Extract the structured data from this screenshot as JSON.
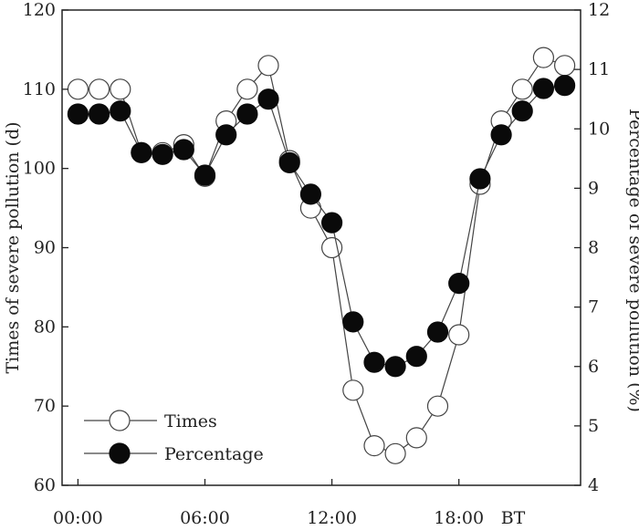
{
  "chart_data": {
    "type": "line",
    "title": "",
    "xlabel": "",
    "x_tick_labels": [
      "00:00",
      "06:00",
      "12:00",
      "18:00"
    ],
    "x_tick_positions": [
      0,
      6,
      12,
      18
    ],
    "x_unit_label": "BT",
    "xlim": [
      -0.75,
      23.75
    ],
    "ylabel_left": "Times of severe pollution (d)",
    "ylim_left": [
      60,
      120
    ],
    "yticks_left": [
      60,
      70,
      80,
      90,
      100,
      110,
      120
    ],
    "ylabel_right": "Percentage of severe pollution (%)",
    "ylim_right": [
      4,
      12
    ],
    "yticks_right": [
      4,
      5,
      6,
      7,
      8,
      9,
      10,
      11,
      12
    ],
    "grid": false,
    "legend_position": "bottom-left",
    "x": [
      0,
      1,
      2,
      3,
      4,
      5,
      6,
      7,
      8,
      9,
      10,
      11,
      12,
      13,
      14,
      15,
      16,
      17,
      18,
      19,
      20,
      21,
      22,
      23
    ],
    "series": [
      {
        "name": "Times",
        "axis": "left",
        "marker": "open-circle",
        "values": [
          110,
          110,
          110,
          102,
          102,
          103,
          99,
          106,
          110,
          113,
          101,
          95,
          90,
          72,
          65,
          64,
          66,
          70,
          79,
          98,
          106,
          110,
          114,
          113
        ]
      },
      {
        "name": "Percentage",
        "axis": "right",
        "marker": "filled-circle",
        "values": [
          10.25,
          10.25,
          10.3,
          9.6,
          9.57,
          9.65,
          9.22,
          9.9,
          10.25,
          10.5,
          9.43,
          8.9,
          8.42,
          6.75,
          6.07,
          6.0,
          6.17,
          6.58,
          7.4,
          9.16,
          9.9,
          10.3,
          10.68,
          10.73
        ]
      }
    ]
  },
  "colors": {
    "axis": "#222222",
    "line": "#444444",
    "marker_open_fill": "#ffffff",
    "marker_filled": "#0a0a0a"
  }
}
